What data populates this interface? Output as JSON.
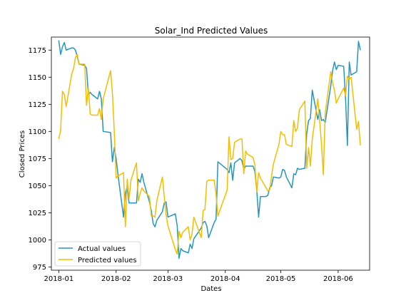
{
  "chart_data": {
    "type": "line",
    "title": "Solar_Ind Predicted Values",
    "xlabel": "Dates",
    "ylabel": "Closed Prices",
    "xlim": [
      "2017-12-28",
      "2018-06-18"
    ],
    "ylim": [
      972,
      1187
    ],
    "x_ticks": [
      "2018-01-01",
      "2018-02-01",
      "2018-03-01",
      "2018-04-01",
      "2018-05-01",
      "2018-06-01"
    ],
    "x_tick_labels": [
      "2018-01",
      "2018-02",
      "2018-03",
      "2018-04",
      "2018-05",
      "2018-06"
    ],
    "y_ticks": [
      975,
      1000,
      1025,
      1050,
      1075,
      1100,
      1125,
      1150,
      1175
    ],
    "grid": false,
    "legend_position": "lower-left",
    "series": [
      {
        "name": "Actual values",
        "color": "#2596be",
        "points": [
          [
            "2018-01-01",
            1184
          ],
          [
            "2018-01-02",
            1171
          ],
          [
            "2018-01-03",
            1178
          ],
          [
            "2018-01-04",
            1182
          ],
          [
            "2018-01-05",
            1175
          ],
          [
            "2018-01-08",
            1177
          ],
          [
            "2018-01-09",
            1177
          ],
          [
            "2018-01-10",
            1175
          ],
          [
            "2018-01-11",
            1169
          ],
          [
            "2018-01-12",
            1162
          ],
          [
            "2018-01-15",
            1161
          ],
          [
            "2018-01-16",
            1158
          ],
          [
            "2018-01-17",
            1134
          ],
          [
            "2018-01-18",
            1136
          ],
          [
            "2018-01-19",
            1134
          ],
          [
            "2018-01-22",
            1130
          ],
          [
            "2018-01-23",
            1137
          ],
          [
            "2018-01-24",
            1130
          ],
          [
            "2018-01-25",
            1100
          ],
          [
            "2018-01-29",
            1099
          ],
          [
            "2018-01-30",
            1072
          ],
          [
            "2018-01-31",
            1085
          ],
          [
            "2018-02-01",
            1075
          ],
          [
            "2018-02-02",
            1060
          ],
          [
            "2018-02-05",
            1021
          ],
          [
            "2018-02-06",
            1043
          ],
          [
            "2018-02-07",
            1049
          ],
          [
            "2018-02-08",
            1034
          ],
          [
            "2018-02-09",
            1034
          ],
          [
            "2018-02-12",
            1034
          ],
          [
            "2018-02-13",
            1056
          ],
          [
            "2018-02-14",
            1053
          ],
          [
            "2018-02-15",
            1061
          ],
          [
            "2018-02-16",
            1053
          ],
          [
            "2018-02-19",
            1035
          ],
          [
            "2018-02-20",
            1027
          ],
          [
            "2018-02-21",
            1015
          ],
          [
            "2018-02-22",
            1012
          ],
          [
            "2018-02-23",
            1018
          ],
          [
            "2018-02-26",
            1026
          ],
          [
            "2018-02-27",
            1034
          ],
          [
            "2018-02-28",
            1035
          ],
          [
            "2018-03-01",
            1021
          ],
          [
            "2018-03-05",
            1024
          ],
          [
            "2018-03-06",
            1013
          ],
          [
            "2018-03-07",
            983
          ],
          [
            "2018-03-08",
            992
          ],
          [
            "2018-03-09",
            990
          ],
          [
            "2018-03-12",
            988
          ],
          [
            "2018-03-13",
            996
          ],
          [
            "2018-03-14",
            992
          ],
          [
            "2018-03-15",
            1001
          ],
          [
            "2018-03-19",
            1011
          ],
          [
            "2018-03-20",
            1016
          ],
          [
            "2018-03-21",
            1017
          ],
          [
            "2018-03-22",
            1013
          ],
          [
            "2018-03-23",
            1002
          ],
          [
            "2018-03-26",
            1016
          ],
          [
            "2018-03-27",
            1019
          ],
          [
            "2018-03-28",
            1072
          ],
          [
            "2018-04-02",
            1065
          ],
          [
            "2018-04-03",
            1062
          ],
          [
            "2018-04-04",
            1071
          ],
          [
            "2018-04-05",
            1055
          ],
          [
            "2018-04-06",
            1071
          ],
          [
            "2018-04-09",
            1075
          ],
          [
            "2018-04-10",
            1073
          ],
          [
            "2018-04-11",
            1065
          ],
          [
            "2018-04-12",
            1068
          ],
          [
            "2018-04-13",
            1068
          ],
          [
            "2018-04-16",
            1068
          ],
          [
            "2018-04-17",
            1063
          ],
          [
            "2018-04-18",
            1046
          ],
          [
            "2018-04-19",
            1021
          ],
          [
            "2018-04-20",
            1040
          ],
          [
            "2018-04-23",
            1040
          ],
          [
            "2018-04-24",
            1041
          ],
          [
            "2018-04-25",
            1048
          ],
          [
            "2018-04-26",
            1050
          ],
          [
            "2018-04-27",
            1058
          ],
          [
            "2018-04-30",
            1057
          ],
          [
            "2018-05-01",
            1058
          ],
          [
            "2018-05-02",
            1065
          ],
          [
            "2018-05-03",
            1064
          ],
          [
            "2018-05-04",
            1058
          ],
          [
            "2018-05-07",
            1048
          ],
          [
            "2018-05-08",
            1061
          ],
          [
            "2018-05-09",
            1060
          ],
          [
            "2018-05-10",
            1066
          ],
          [
            "2018-05-11",
            1065
          ],
          [
            "2018-05-14",
            1066
          ],
          [
            "2018-05-15",
            1098
          ],
          [
            "2018-05-16",
            1110
          ],
          [
            "2018-05-17",
            1112
          ],
          [
            "2018-05-18",
            1138
          ],
          [
            "2018-05-21",
            1111
          ],
          [
            "2018-05-22",
            1120
          ],
          [
            "2018-05-23",
            1110
          ],
          [
            "2018-05-24",
            1111
          ],
          [
            "2018-05-25",
            1108
          ],
          [
            "2018-05-28",
            1142
          ],
          [
            "2018-05-29",
            1156
          ],
          [
            "2018-05-30",
            1164
          ],
          [
            "2018-05-31",
            1157
          ],
          [
            "2018-06-01",
            1161
          ],
          [
            "2018-06-04",
            1160
          ],
          [
            "2018-06-05",
            1130
          ],
          [
            "2018-06-06",
            1087
          ],
          [
            "2018-06-07",
            1164
          ],
          [
            "2018-06-08",
            1152
          ],
          [
            "2018-06-11",
            1155
          ],
          [
            "2018-06-12",
            1183
          ],
          [
            "2018-06-13",
            1175
          ]
        ]
      },
      {
        "name": "Predicted values",
        "color": "#f5bd00",
        "points": [
          [
            "2018-01-01",
            1093
          ],
          [
            "2018-01-02",
            1101
          ],
          [
            "2018-01-03",
            1137
          ],
          [
            "2018-01-04",
            1134
          ],
          [
            "2018-01-05",
            1123
          ],
          [
            "2018-01-08",
            1153
          ],
          [
            "2018-01-09",
            1158
          ],
          [
            "2018-01-10",
            1168
          ],
          [
            "2018-01-11",
            1171
          ],
          [
            "2018-01-12",
            1162
          ],
          [
            "2018-01-15",
            1162
          ],
          [
            "2018-01-16",
            1124
          ],
          [
            "2018-01-17",
            1140
          ],
          [
            "2018-01-18",
            1116
          ],
          [
            "2018-01-19",
            1115
          ],
          [
            "2018-01-22",
            1115
          ],
          [
            "2018-01-23",
            1121
          ],
          [
            "2018-01-24",
            1111
          ],
          [
            "2018-01-25",
            1130
          ],
          [
            "2018-01-29",
            1156
          ],
          [
            "2018-01-30",
            1135
          ],
          [
            "2018-01-31",
            1100
          ],
          [
            "2018-02-01",
            1057
          ],
          [
            "2018-02-02",
            1059
          ],
          [
            "2018-02-05",
            1062
          ],
          [
            "2018-02-06",
            1012
          ],
          [
            "2018-02-07",
            1056
          ],
          [
            "2018-02-08",
            1038
          ],
          [
            "2018-02-09",
            1055
          ],
          [
            "2018-02-12",
            1071
          ],
          [
            "2018-02-13",
            1036
          ],
          [
            "2018-02-14",
            1043
          ],
          [
            "2018-02-15",
            1048
          ],
          [
            "2018-02-16",
            1045
          ],
          [
            "2018-02-19",
            1040
          ],
          [
            "2018-02-20",
            1022
          ],
          [
            "2018-02-21",
            1022
          ],
          [
            "2018-02-22",
            1021
          ],
          [
            "2018-02-23",
            1036
          ],
          [
            "2018-02-26",
            1058
          ],
          [
            "2018-02-27",
            1040
          ],
          [
            "2018-02-28",
            1023
          ],
          [
            "2018-03-01",
            1013
          ],
          [
            "2018-03-05",
            991
          ],
          [
            "2018-03-06",
            987
          ],
          [
            "2018-03-07",
            1008
          ],
          [
            "2018-03-08",
            1002
          ],
          [
            "2018-03-09",
            1007
          ],
          [
            "2018-03-12",
            1012
          ],
          [
            "2018-03-13",
            1000
          ],
          [
            "2018-03-14",
            1005
          ],
          [
            "2018-03-15",
            1021
          ],
          [
            "2018-03-19",
            1002
          ],
          [
            "2018-03-20",
            1027
          ],
          [
            "2018-03-21",
            1028
          ],
          [
            "2018-03-22",
            1054
          ],
          [
            "2018-03-23",
            1055
          ],
          [
            "2018-03-26",
            1055
          ],
          [
            "2018-03-27",
            1042
          ],
          [
            "2018-03-28",
            1022
          ],
          [
            "2018-04-02",
            1046
          ],
          [
            "2018-04-03",
            1095
          ],
          [
            "2018-04-04",
            1074
          ],
          [
            "2018-04-05",
            1075
          ],
          [
            "2018-04-06",
            1090
          ],
          [
            "2018-04-09",
            1093
          ],
          [
            "2018-04-10",
            1093
          ],
          [
            "2018-04-11",
            1061
          ],
          [
            "2018-04-12",
            1082
          ],
          [
            "2018-04-13",
            1079
          ],
          [
            "2018-04-16",
            1076
          ],
          [
            "2018-04-17",
            1069
          ],
          [
            "2018-04-18",
            1044
          ],
          [
            "2018-04-19",
            1062
          ],
          [
            "2018-04-20",
            1057
          ],
          [
            "2018-04-23",
            1048
          ],
          [
            "2018-04-24",
            1045
          ],
          [
            "2018-04-25",
            1046
          ],
          [
            "2018-04-26",
            1059
          ],
          [
            "2018-04-27",
            1070
          ],
          [
            "2018-04-30",
            1088
          ],
          [
            "2018-05-01",
            1100
          ],
          [
            "2018-05-02",
            1097
          ],
          [
            "2018-05-03",
            1097
          ],
          [
            "2018-05-04",
            1088
          ],
          [
            "2018-05-07",
            1086
          ],
          [
            "2018-05-08",
            1110
          ],
          [
            "2018-05-09",
            1100
          ],
          [
            "2018-05-10",
            1103
          ],
          [
            "2018-05-11",
            1120
          ],
          [
            "2018-05-14",
            1128
          ],
          [
            "2018-05-15",
            1066
          ],
          [
            "2018-05-16",
            1085
          ],
          [
            "2018-05-17",
            1068
          ],
          [
            "2018-05-18",
            1093
          ],
          [
            "2018-05-21",
            1130
          ],
          [
            "2018-05-22",
            1110
          ],
          [
            "2018-05-23",
            1088
          ],
          [
            "2018-05-24",
            1060
          ],
          [
            "2018-05-25",
            1117
          ],
          [
            "2018-05-28",
            1155
          ],
          [
            "2018-05-29",
            1145
          ],
          [
            "2018-05-30",
            1138
          ],
          [
            "2018-05-31",
            1126
          ],
          [
            "2018-06-01",
            1130
          ],
          [
            "2018-06-04",
            1140
          ],
          [
            "2018-06-05",
            1133
          ],
          [
            "2018-06-06",
            1151
          ],
          [
            "2018-06-07",
            1148
          ],
          [
            "2018-06-08",
            1150
          ],
          [
            "2018-06-11",
            1102
          ],
          [
            "2018-06-12",
            1109
          ],
          [
            "2018-06-13",
            1087
          ]
        ]
      }
    ]
  }
}
